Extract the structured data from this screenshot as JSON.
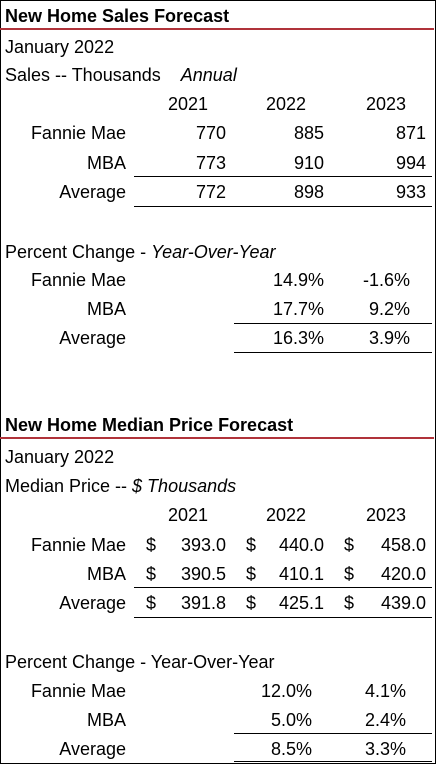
{
  "sales": {
    "title": "New Home Sales Forecast",
    "date": "January 2022",
    "units_label": "Sales -- Thousands",
    "units_period": "Annual",
    "years": [
      "2021",
      "2022",
      "2023"
    ],
    "rows": [
      {
        "label": "Fannie Mae",
        "values": [
          "770",
          "885",
          "871"
        ]
      },
      {
        "label": "MBA",
        "values": [
          "773",
          "910",
          "994"
        ]
      },
      {
        "label": "Average",
        "values": [
          "772",
          "898",
          "933"
        ]
      }
    ],
    "pct_label": "Percent Change - ",
    "pct_label_italic": "Year-Over-Year",
    "pct_rows": [
      {
        "label": "Fannie Mae",
        "values": [
          "14.9%",
          "-1.6%"
        ]
      },
      {
        "label": "MBA",
        "values": [
          "17.7%",
          "9.2%"
        ]
      },
      {
        "label": "Average",
        "values": [
          "16.3%",
          "3.9%"
        ]
      }
    ]
  },
  "price": {
    "title": "New Home Median Price Forecast",
    "date": "January 2022",
    "units_label": "Median Price -- ",
    "units_italic": "$ Thousands",
    "years": [
      "2021",
      "2022",
      "2023"
    ],
    "currency": "$",
    "rows": [
      {
        "label": "Fannie Mae",
        "values": [
          "393.0",
          "440.0",
          "458.0"
        ]
      },
      {
        "label": "MBA",
        "values": [
          "390.5",
          "410.1",
          "420.0"
        ]
      },
      {
        "label": "Average",
        "values": [
          "391.8",
          "425.1",
          "439.0"
        ]
      }
    ],
    "pct_label": "Percent Change - Year-Over-Year",
    "pct_rows": [
      {
        "label": "Fannie Mae",
        "values": [
          "12.0%",
          "4.1%"
        ]
      },
      {
        "label": "MBA",
        "values": [
          "5.0%",
          "2.4%"
        ]
      },
      {
        "label": "Average",
        "values": [
          "8.5%",
          "3.3%"
        ]
      }
    ]
  }
}
